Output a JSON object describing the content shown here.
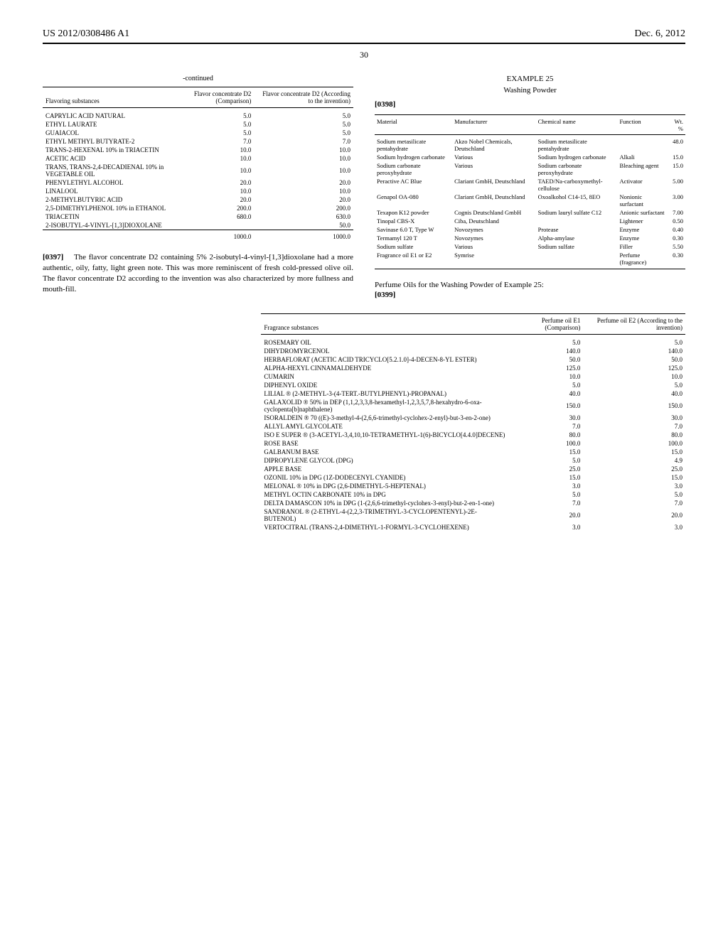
{
  "header": {
    "left": "US 2012/0308486 A1",
    "right": "Dec. 6, 2012"
  },
  "page_number": "30",
  "table1": {
    "title": "-continued",
    "headers": [
      "Flavoring substances",
      "Flavor concentrate D2 (Comparison)",
      "Flavor concentrate D2 (According to the invention)"
    ],
    "rows": [
      [
        "CAPRYLIC ACID NATURAL",
        "5.0",
        "5.0"
      ],
      [
        "ETHYL LAURATE",
        "5.0",
        "5.0"
      ],
      [
        "GUAIACOL",
        "5.0",
        "5.0"
      ],
      [
        "ETHYL METHYL BUTYRATE-2",
        "7.0",
        "7.0"
      ],
      [
        "TRANS-2-HEXENAL 10% in TRIACETIN",
        "10.0",
        "10.0"
      ],
      [
        "ACETIC ACID",
        "10.0",
        "10.0"
      ],
      [
        "TRANS, TRANS-2,4-DECADIENAL 10% in VEGETABLE OIL",
        "10.0",
        "10.0"
      ],
      [
        "PHENYLETHYL ALCOHOL",
        "20.0",
        "20.0"
      ],
      [
        "LINALOOL",
        "10.0",
        "10.0"
      ],
      [
        "2-METHYLBUTYRIC ACID",
        "20.0",
        "20.0"
      ],
      [
        "2,5-DIMETHYLPHENOL 10% in ETHANOL",
        "200.0",
        "200.0"
      ],
      [
        "TRIACETIN",
        "680.0",
        "630.0"
      ],
      [
        "2-ISOBUTYL-4-VINYL-[1,3]DIOXOLANE",
        "",
        "50.0"
      ]
    ],
    "total": [
      "",
      "1000.0",
      "1000.0"
    ]
  },
  "para397": {
    "num": "[0397]",
    "text": "The flavor concentrate D2 containing 5% 2-isobutyl-4-vinyl-[1,3]dioxolane had a more authentic, oily, fatty, light green note. This was more reminiscent of fresh cold-pressed olive oil. The flavor concentrate D2 according to the invention was also characterized by more fullness and mouth-fill."
  },
  "example25": {
    "title": "EXAMPLE 25",
    "subtitle": "Washing Powder",
    "num": "[0398]"
  },
  "table2": {
    "headers": [
      "Material",
      "Manufacturer",
      "Chemical name",
      "Function",
      "Wt. %"
    ],
    "rows": [
      [
        "Sodium metasilicate pentahydrate",
        "Akzo Nobel Chemicals, Deutschland",
        "Sodium metasilicate pentahydrate",
        "",
        "48.0"
      ],
      [
        "Sodium hydrogen carbonate",
        "Various",
        "Sodium hydrogen carbonate",
        "Alkali",
        "15.0"
      ],
      [
        "Sodium carbonate peroxyhydrate",
        "Various",
        "Sodium carbonate peroxyhydrate",
        "Bleaching agent",
        "15.0"
      ],
      [
        "Peractive AC Blue",
        "Clariant GmbH, Deutschland",
        "TAED/Na-carboxymethyl-cellulose",
        "Activator",
        "5.00"
      ],
      [
        "Genapol OA-080",
        "Clariant GmbH, Deutschland",
        "Oxoalkohol C14-15, 8EO",
        "Nonionic surfactant",
        "3.00"
      ],
      [
        "Texapon K12 powder",
        "Cognis Deutschland GmbH",
        "Sodium lauryl sulfate C12",
        "Anionic surfactant",
        "7.00"
      ],
      [
        "Tinopal CBS-X",
        "Ciba, Deutschland",
        "",
        "Lightener",
        "0.50"
      ],
      [
        "Savinase 6.0 T, Type W",
        "Novozymes",
        "Protease",
        "Enzyme",
        "0.40"
      ],
      [
        "Termamyl 120 T",
        "Novozymes",
        "Alpha-amylase",
        "Enzyme",
        "0.30"
      ],
      [
        "Sodium sulfate",
        "Various",
        "Sodium sulfate",
        "Filler",
        "5.50"
      ],
      [
        "Fragrance oil E1 or E2",
        "Symrise",
        "",
        "Perfume (fragrance)",
        "0.30"
      ]
    ]
  },
  "section399": {
    "title": "Perfume Oils for the Washing Powder of Example 25:",
    "num": "[0399]"
  },
  "table3": {
    "headers": [
      "Fragrance substances",
      "Perfume oil E1 (Comparison)",
      "Perfume oil E2 (According to the invention)"
    ],
    "rows": [
      [
        "ROSEMARY OIL",
        "5.0",
        "5.0"
      ],
      [
        "DIHYDROMYRCENOL",
        "140.0",
        "140.0"
      ],
      [
        "HERBAFLORAT (ACETIC ACID TRICYCLO[5.2.1.0]-4-DECEN-8-YL ESTER)",
        "50.0",
        "50.0"
      ],
      [
        "ALPHA-HEXYL CINNAMALDEHYDE",
        "125.0",
        "125.0"
      ],
      [
        "CUMARIN",
        "10.0",
        "10.0"
      ],
      [
        "DIPHENYL OXIDE",
        "5.0",
        "5.0"
      ],
      [
        "LILIAL ® (2-METHYL-3-(4-TERT.-BUTYLPHENYL)-PROPANAL)",
        "40.0",
        "40.0"
      ],
      [
        "GALAXOLID ® 50% in DEP (1,1,2,3,3,8-hexamethyl-1,2,3,5,7,8-hexahydro-6-oxa-cyclopenta[b]naphthalene)",
        "150.0",
        "150.0"
      ],
      [
        "ISORALDEIN ® 70 ((E)-3-methyl-4-(2,6,6-trimethyl-cyclohex-2-enyl)-but-3-en-2-one)",
        "30.0",
        "30.0"
      ],
      [
        "ALLYL AMYL GLYCOLATE",
        "7.0",
        "7.0"
      ],
      [
        "ISO E SUPER ® (3-ACETYL-3,4,10,10-TETRAMETHYL-1(6)-BICYCLO[4.4.0]DECENE)",
        "80.0",
        "80.0"
      ],
      [
        "ROSE BASE",
        "100.0",
        "100.0"
      ],
      [
        "GALBANUM BASE",
        "15.0",
        "15.0"
      ],
      [
        "DIPROPYLENE GLYCOL (DPG)",
        "5.0",
        "4.9"
      ],
      [
        "APPLE BASE",
        "25.0",
        "25.0"
      ],
      [
        "OZONIL 10% in DPG (1Z-DODECENYL CYANIDE)",
        "15.0",
        "15.0"
      ],
      [
        "MELONAL ® 10% in DPG (2,6-DIMETHYL-5-HEPTENAL)",
        "3.0",
        "3.0"
      ],
      [
        "METHYL OCTIN CARBONATE 10% in DPG",
        "5.0",
        "5.0"
      ],
      [
        "DELTA DAMASCON 10% in DPG (1-(2,6,6-trimethyl-cyclohex-3-enyl)-but-2-en-1-one)",
        "7.0",
        "7.0"
      ],
      [
        "SANDRANOL ® (2-ETHYL-4-(2,2,3-TRIMETHYL-3-CYCLOPENTENYL)-2E-BUTENOL)",
        "20.0",
        "20.0"
      ],
      [
        "VERTOCITRAL (TRANS-2,4-DIMETHYL-1-FORMYL-3-CYCLOHEXENE)",
        "3.0",
        "3.0"
      ]
    ]
  }
}
